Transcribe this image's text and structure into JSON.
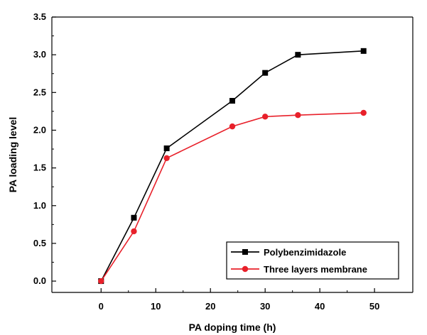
{
  "chart_data": {
    "type": "line",
    "title": "",
    "xlabel": "PA doping time (h)",
    "ylabel": "PA loading level",
    "xlim": [
      -9,
      57
    ],
    "ylim": [
      -0.15,
      3.5
    ],
    "xticks": [
      0,
      10,
      20,
      30,
      40,
      50
    ],
    "yticks": [
      0.0,
      0.5,
      1.0,
      1.5,
      2.0,
      2.5,
      3.0,
      3.5
    ],
    "xtick_labels": [
      "0",
      "10",
      "20",
      "30",
      "40",
      "50"
    ],
    "ytick_labels": [
      "0.0",
      "0.5",
      "1.0",
      "1.5",
      "2.0",
      "2.5",
      "3.0",
      "3.5"
    ],
    "grid": false,
    "legend_position": "bottom-right",
    "series": [
      {
        "name": "Polybenzimidazole",
        "color": "#000000",
        "marker": "square",
        "x": [
          0,
          6,
          12,
          24,
          30,
          36,
          48
        ],
        "y": [
          0.0,
          0.84,
          1.76,
          2.39,
          2.76,
          3.0,
          3.05
        ]
      },
      {
        "name": "Three layers membrane",
        "color": "#e8202a",
        "marker": "circle",
        "x": [
          0,
          6,
          12,
          24,
          30,
          36,
          48
        ],
        "y": [
          0.0,
          0.66,
          1.63,
          2.05,
          2.18,
          2.2,
          2.23
        ]
      }
    ]
  }
}
